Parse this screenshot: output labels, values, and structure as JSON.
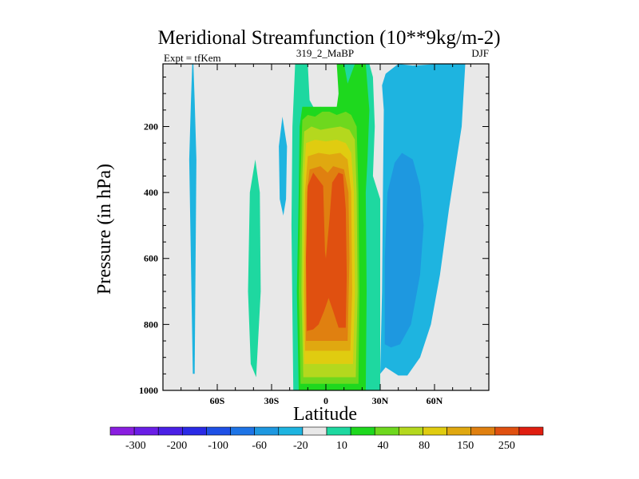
{
  "chart_data": {
    "type": "contour",
    "title": "Meridional Streamfunction (10**9kg/m-2)",
    "left_label": "Expt = tfKem",
    "center_label": "319_2_MaBP",
    "right_label": "DJF",
    "xlabel": "Latitude",
    "ylabel": "Pressure (in hPa)",
    "xlim": [
      -90,
      90
    ],
    "ylim": [
      1000,
      10
    ],
    "xticks": [
      {
        "value": -60,
        "label": "60S"
      },
      {
        "value": -30,
        "label": "30S"
      },
      {
        "value": 0,
        "label": "0"
      },
      {
        "value": 30,
        "label": "30N"
      },
      {
        "value": 60,
        "label": "60N"
      }
    ],
    "yticks": [
      {
        "value": 200,
        "label": "200"
      },
      {
        "value": 400,
        "label": "400"
      },
      {
        "value": 600,
        "label": "600"
      },
      {
        "value": 800,
        "label": "800"
      },
      {
        "value": 1000,
        "label": "1000"
      }
    ],
    "background_color": "#e8e8e8",
    "colorbar": {
      "colors": [
        "#8a1ee0",
        "#6a1ee6",
        "#4a20e6",
        "#2a2ae6",
        "#1e50e6",
        "#1e74e6",
        "#1e98e0",
        "#1eb4e0",
        "#e8e8e8",
        "#1ed8a0",
        "#1ed81e",
        "#6ed81e",
        "#b4d81e",
        "#e0cc10",
        "#e0a810",
        "#e08010",
        "#e05010",
        "#e01e10"
      ],
      "labels": [
        "-300",
        "-200",
        "-100",
        "-60",
        "-20",
        "10",
        "40",
        "80",
        "150",
        "250"
      ]
    },
    "contours": [
      {
        "level": "-20",
        "color": "#1eb4e0",
        "polygon": [
          [
            -73.5,
            950
          ],
          [
            -75.5,
            300
          ],
          [
            -74.5,
            120
          ],
          [
            -73.8,
            10
          ],
          [
            -73.2,
            10
          ],
          [
            -72.5,
            120
          ],
          [
            -71.5,
            300
          ],
          [
            -72.5,
            950
          ]
        ]
      },
      {
        "level": "-20",
        "color": "#1eb4e0",
        "polygon": [
          [
            -26,
            260
          ],
          [
            -24,
            170
          ],
          [
            -21.5,
            260
          ],
          [
            -22,
            420
          ],
          [
            -23.5,
            470
          ],
          [
            -25.5,
            420
          ]
        ]
      },
      {
        "level": "-20",
        "color": "#1eb4e0",
        "polygon": [
          [
            30,
            950
          ],
          [
            31,
            700
          ],
          [
            31.5,
            400
          ],
          [
            32,
            150
          ],
          [
            31,
            75
          ],
          [
            33,
            40
          ],
          [
            40,
            10
          ],
          [
            48,
            15
          ],
          [
            63,
            10
          ],
          [
            77,
            10
          ],
          [
            75,
            200
          ],
          [
            68,
            450
          ],
          [
            63,
            650
          ],
          [
            58,
            800
          ],
          [
            52,
            900
          ],
          [
            45,
            955
          ],
          [
            40,
            955
          ],
          [
            33,
            930
          ]
        ]
      },
      {
        "level": "-60",
        "color": "#1e98e0",
        "polygon": [
          [
            32.5,
            860
          ],
          [
            32.5,
            600
          ],
          [
            34,
            400
          ],
          [
            38,
            310
          ],
          [
            42,
            280
          ],
          [
            48,
            300
          ],
          [
            52,
            380
          ],
          [
            54,
            500
          ],
          [
            52,
            650
          ],
          [
            47,
            800
          ],
          [
            41,
            860
          ],
          [
            36,
            870
          ]
        ]
      },
      {
        "level": "10",
        "color": "#1ed8a0",
        "polygon": [
          [
            -41.5,
            920
          ],
          [
            -43,
            700
          ],
          [
            -42,
            400
          ],
          [
            -39,
            300
          ],
          [
            -36.5,
            400
          ],
          [
            -36,
            700
          ],
          [
            -38.5,
            960
          ]
        ]
      },
      {
        "level": "10",
        "color": "#1ed8a0",
        "polygon": [
          [
            -18,
            1000
          ],
          [
            -19,
            500
          ],
          [
            -18.5,
            200
          ],
          [
            -17,
            10
          ],
          [
            -10,
            10
          ],
          [
            -9,
            120
          ],
          [
            -6,
            150
          ],
          [
            -3,
            140
          ],
          [
            -1,
            150
          ],
          [
            5,
            150
          ],
          [
            7,
            130
          ],
          [
            7,
            10
          ],
          [
            24,
            10
          ],
          [
            26,
            50
          ],
          [
            27,
            200
          ],
          [
            26,
            350
          ],
          [
            30,
            420
          ],
          [
            30,
            1000
          ]
        ]
      },
      {
        "level": "40",
        "color": "#1ed81e",
        "polygon": [
          [
            -15,
            1000
          ],
          [
            -16,
            700
          ],
          [
            -15,
            400
          ],
          [
            -14.5,
            200
          ],
          [
            -13,
            140
          ],
          [
            -9,
            140
          ],
          [
            -6,
            140
          ],
          [
            -2,
            140
          ],
          [
            3,
            140
          ],
          [
            6,
            140
          ],
          [
            7,
            100
          ],
          [
            6,
            10
          ],
          [
            10,
            10
          ],
          [
            12,
            70
          ],
          [
            16,
            10
          ],
          [
            22,
            10
          ],
          [
            24,
            150
          ],
          [
            23,
            300
          ],
          [
            22,
            400
          ],
          [
            22.5,
            700
          ],
          [
            22,
            1000
          ]
        ]
      },
      {
        "level": "80",
        "color": "#6ed81e",
        "polygon": [
          [
            -14,
            980
          ],
          [
            -15,
            700
          ],
          [
            -14,
            350
          ],
          [
            -13,
            180
          ],
          [
            -10,
            165
          ],
          [
            -6,
            170
          ],
          [
            -2,
            155
          ],
          [
            2,
            155
          ],
          [
            6,
            165
          ],
          [
            11,
            155
          ],
          [
            14,
            165
          ],
          [
            17,
            200
          ],
          [
            18,
            400
          ],
          [
            18.5,
            700
          ],
          [
            18,
            980
          ]
        ]
      },
      {
        "level": "150",
        "color": "#b4d81e",
        "polygon": [
          [
            -12.5,
            960
          ],
          [
            -13.5,
            700
          ],
          [
            -13,
            350
          ],
          [
            -12,
            215
          ],
          [
            -8,
            200
          ],
          [
            -3,
            210
          ],
          [
            2,
            205
          ],
          [
            8,
            200
          ],
          [
            13,
            210
          ],
          [
            16,
            240
          ],
          [
            17,
            400
          ],
          [
            17.5,
            700
          ],
          [
            16.5,
            960
          ]
        ]
      },
      {
        "level": "250",
        "color": "#e0cc10",
        "polygon": [
          [
            -12,
            920
          ],
          [
            -12.5,
            700
          ],
          [
            -12,
            350
          ],
          [
            -11,
            250
          ],
          [
            -6,
            240
          ],
          [
            0,
            245
          ],
          [
            6,
            240
          ],
          [
            11,
            250
          ],
          [
            14,
            280
          ],
          [
            15.5,
            400
          ],
          [
            16,
            700
          ],
          [
            15,
            920
          ]
        ]
      },
      {
        "level": "300",
        "color": "#e0a810",
        "polygon": [
          [
            -11.5,
            880
          ],
          [
            -12,
            700
          ],
          [
            -11.5,
            400
          ],
          [
            -10,
            290
          ],
          [
            -4,
            280
          ],
          [
            2,
            285
          ],
          [
            8,
            280
          ],
          [
            12,
            300
          ],
          [
            14,
            400
          ],
          [
            14.5,
            700
          ],
          [
            13.5,
            880
          ]
        ]
      },
      {
        "level": "350",
        "color": "#e08010",
        "polygon": [
          [
            -11,
            850
          ],
          [
            -11,
            600
          ],
          [
            -10.5,
            400
          ],
          [
            -9,
            330
          ],
          [
            -3,
            320
          ],
          [
            1,
            340
          ],
          [
            4,
            320
          ],
          [
            10,
            330
          ],
          [
            12.5,
            400
          ],
          [
            13,
            600
          ],
          [
            12,
            850
          ]
        ]
      },
      {
        "level": "400",
        "color": "#e05010",
        "polygon": [
          [
            -10.5,
            820
          ],
          [
            -11,
            600
          ],
          [
            -10,
            380
          ],
          [
            -7,
            340
          ],
          [
            -1.5,
            380
          ],
          [
            -0.5,
            580
          ],
          [
            0,
            600
          ],
          [
            2,
            480
          ],
          [
            3.5,
            370
          ],
          [
            7,
            340
          ],
          [
            9.5,
            345
          ],
          [
            11,
            450
          ],
          [
            11.5,
            650
          ],
          [
            11,
            810
          ],
          [
            7,
            810
          ],
          [
            4,
            760
          ],
          [
            1.5,
            720
          ],
          [
            -1,
            760
          ],
          [
            -4,
            800
          ],
          [
            -7,
            815
          ]
        ]
      }
    ]
  }
}
